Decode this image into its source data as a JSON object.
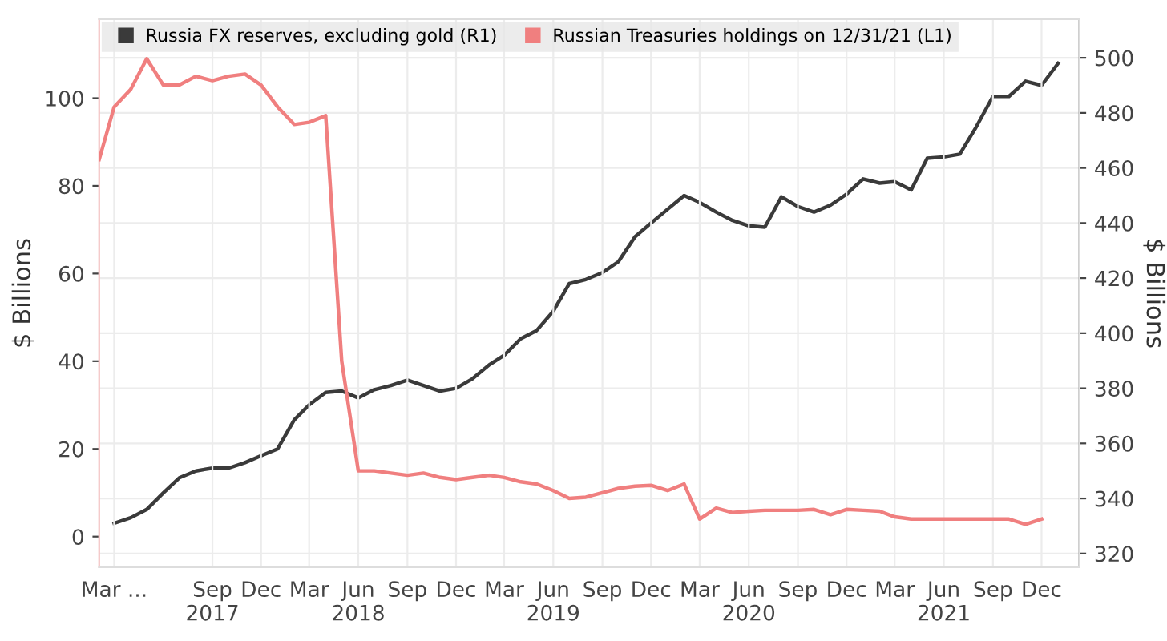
{
  "chart_data": {
    "type": "line",
    "ylabel": "$ Billions",
    "y2label": "$ Billions",
    "series": [
      {
        "name": "Russia FX reserves, excluding gold (R1)",
        "color": "#3a3a3a",
        "axis": "y2",
        "x": [
          "2017-03",
          "2017-04",
          "2017-05",
          "2017-06",
          "2017-07",
          "2017-08",
          "2017-09",
          "2017-10",
          "2017-11",
          "2017-12",
          "2018-01",
          "2018-02",
          "2018-03",
          "2018-04",
          "2018-05",
          "2018-06",
          "2018-07",
          "2018-08",
          "2018-09",
          "2018-10",
          "2018-11",
          "2018-12",
          "2019-01",
          "2019-02",
          "2019-03",
          "2019-04",
          "2019-05",
          "2019-06",
          "2019-07",
          "2019-08",
          "2019-09",
          "2019-10",
          "2019-11",
          "2019-12",
          "2020-01",
          "2020-02",
          "2020-03",
          "2020-04",
          "2020-05",
          "2020-06",
          "2020-07",
          "2020-08",
          "2020-09",
          "2020-10",
          "2020-11",
          "2020-12",
          "2021-01",
          "2021-02",
          "2021-03",
          "2021-04",
          "2021-05",
          "2021-06",
          "2021-07",
          "2021-08",
          "2021-09",
          "2021-10",
          "2021-11",
          "2021-12",
          "2022-01"
        ],
        "values": [
          331,
          333,
          336,
          342,
          347.5,
          350,
          351,
          351,
          353,
          355.5,
          358,
          368.5,
          374,
          378.5,
          379,
          376.5,
          379.5,
          381,
          383,
          381,
          379,
          380,
          383.5,
          388.5,
          392,
          398,
          401,
          408,
          418,
          419.5,
          422,
          426,
          435,
          440,
          445,
          450,
          447.5,
          444,
          441,
          439,
          438.5,
          449.5,
          446,
          444,
          446.5,
          450.5,
          456,
          454.5,
          455,
          452,
          463.5,
          464,
          465,
          475,
          486,
          486,
          491.5,
          490,
          498
        ]
      },
      {
        "name": "Russian Treasuries holdings on 12/31/21 (L1)",
        "color": "#f07f7f",
        "x": [
          "2017-02",
          "2017-03",
          "2017-04",
          "2017-05",
          "2017-06",
          "2017-07",
          "2017-08",
          "2017-09",
          "2017-10",
          "2017-11",
          "2017-12",
          "2018-01",
          "2018-02",
          "2018-03",
          "2018-04",
          "2018-05",
          "2018-06",
          "2018-07",
          "2018-08",
          "2018-09",
          "2018-10",
          "2018-11",
          "2018-12",
          "2019-01",
          "2019-02",
          "2019-03",
          "2019-04",
          "2019-05",
          "2019-06",
          "2019-07",
          "2019-08",
          "2019-09",
          "2019-10",
          "2019-11",
          "2019-12",
          "2020-01",
          "2020-02",
          "2020-03",
          "2020-04",
          "2020-05",
          "2020-06",
          "2020-07",
          "2020-08",
          "2020-09",
          "2020-10",
          "2020-11",
          "2020-12",
          "2021-01",
          "2021-02",
          "2021-03",
          "2021-04",
          "2021-05",
          "2021-06",
          "2021-07",
          "2021-08",
          "2021-09",
          "2021-10",
          "2021-11",
          "2021-12"
        ],
        "values": [
          86,
          98,
          102,
          109,
          103,
          103,
          105,
          104,
          105,
          105.5,
          103,
          98,
          94,
          94.5,
          96,
          40,
          15,
          15,
          14.5,
          14,
          14.5,
          13.5,
          13,
          13.5,
          14,
          13.5,
          12.5,
          12,
          10.5,
          8.7,
          9,
          10,
          11,
          11.5,
          11.7,
          10.5,
          12,
          4,
          6.5,
          5.5,
          5.8,
          6,
          6,
          6,
          6.2,
          5,
          6.2,
          6,
          5.8,
          4.5,
          4,
          4,
          4,
          4,
          4,
          4,
          4,
          2.8,
          4
        ]
      }
    ],
    "xlim": [
      "2017-02-01",
      "2022-02-10"
    ],
    "xticks": [
      {
        "value": "2017-03",
        "label": "Mar ..."
      },
      {
        "value": "2017-09",
        "label": "Sep\n2017"
      },
      {
        "value": "2017-12",
        "label": "Dec"
      },
      {
        "value": "2018-03",
        "label": "Mar"
      },
      {
        "value": "2018-06",
        "label": "Jun\n2018"
      },
      {
        "value": "2018-09",
        "label": "Sep"
      },
      {
        "value": "2018-12",
        "label": "Dec"
      },
      {
        "value": "2019-03",
        "label": "Mar"
      },
      {
        "value": "2019-06",
        "label": "Jun\n2019"
      },
      {
        "value": "2019-09",
        "label": "Sep"
      },
      {
        "value": "2019-12",
        "label": "Dec"
      },
      {
        "value": "2020-03",
        "label": "Mar"
      },
      {
        "value": "2020-06",
        "label": "Jun\n2020"
      },
      {
        "value": "2020-09",
        "label": "Sep"
      },
      {
        "value": "2020-12",
        "label": "Dec"
      },
      {
        "value": "2021-03",
        "label": "Mar"
      },
      {
        "value": "2021-06",
        "label": "Jun\n2021"
      },
      {
        "value": "2021-09",
        "label": "Sep"
      },
      {
        "value": "2021-12",
        "label": "Dec"
      }
    ],
    "ylim": [
      -7,
      118
    ],
    "yticks": [
      0,
      20,
      40,
      60,
      80,
      100
    ],
    "y2lim": [
      315,
      514
    ],
    "y2ticks": [
      320,
      340,
      360,
      380,
      400,
      420,
      440,
      460,
      480,
      500
    ],
    "grid": true,
    "legend": "top left",
    "line_style": "solid",
    "marker": "none"
  }
}
